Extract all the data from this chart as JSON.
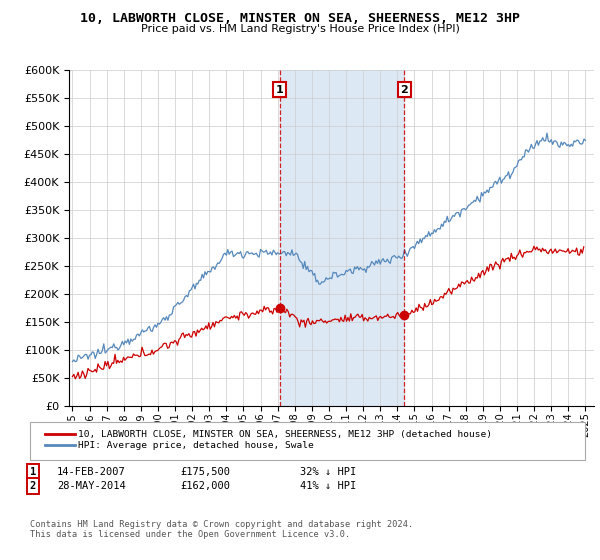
{
  "title": "10, LABWORTH CLOSE, MINSTER ON SEA, SHEERNESS, ME12 3HP",
  "subtitle": "Price paid vs. HM Land Registry's House Price Index (HPI)",
  "legend_line1": "10, LABWORTH CLOSE, MINSTER ON SEA, SHEERNESS, ME12 3HP (detached house)",
  "legend_line2": "HPI: Average price, detached house, Swale",
  "footnote": "Contains HM Land Registry data © Crown copyright and database right 2024.\nThis data is licensed under the Open Government Licence v3.0.",
  "marker1_date": "14-FEB-2007",
  "marker1_price": "£175,500",
  "marker1_hpi": "32% ↓ HPI",
  "marker1_year": 2007.12,
  "marker2_date": "28-MAY-2014",
  "marker2_price": "£162,000",
  "marker2_hpi": "41% ↓ HPI",
  "marker2_year": 2014.41,
  "red_color": "#cc0000",
  "blue_color": "#5588bb",
  "span_color": "#dde8f5",
  "ylim": [
    0,
    600000
  ],
  "xlim": [
    1994.8,
    2025.5
  ],
  "yticks": [
    0,
    50000,
    100000,
    150000,
    200000,
    250000,
    300000,
    350000,
    400000,
    450000,
    500000,
    550000,
    600000
  ],
  "sale1_year": 2007.12,
  "sale1_price": 175500,
  "sale2_year": 2014.41,
  "sale2_price": 162000
}
